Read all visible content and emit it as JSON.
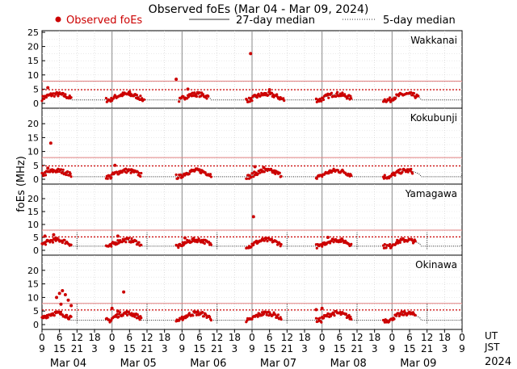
{
  "chart_data": {
    "type": "scatter",
    "title": "Observed foEs (Mar 04 - Mar 09, 2024)",
    "ylabel": "foEs (MHz)",
    "legend": {
      "observed": "Observed foEs",
      "median27": "27-day median",
      "median5": "5-day median",
      "placement": "top"
    },
    "ylim": [
      0,
      25
    ],
    "yticks": [
      0,
      5,
      10,
      15,
      20,
      25
    ],
    "xlim_hours_ut": [
      0,
      144
    ],
    "ut_ticks": [
      "0",
      "6",
      "12",
      "18",
      "0",
      "6",
      "12",
      "18",
      "0",
      "6",
      "12",
      "18",
      "0",
      "6",
      "12",
      "18",
      "0",
      "6",
      "12",
      "18",
      "0",
      "6",
      "12",
      "18",
      "0"
    ],
    "jst_ticks": [
      "9",
      "15",
      "21",
      "3",
      "9",
      "15",
      "21",
      "3",
      "9",
      "15",
      "21",
      "3",
      "9",
      "15",
      "21",
      "3",
      "9",
      "15",
      "21",
      "3",
      "9",
      "15",
      "21",
      "3",
      "9"
    ],
    "ut_label": "UT",
    "jst_label": "JST",
    "days": [
      "Mar 04",
      "Mar 05",
      "Mar 06",
      "Mar 07",
      "Mar 08",
      "Mar 09"
    ],
    "year": "2024",
    "colors": {
      "observed": "#cc0000",
      "median": "#222222",
      "threshold_dotted": "#cc0000",
      "threshold_solid": "#e08080",
      "grid": "#999999"
    },
    "stations": [
      {
        "name": "Wakkanai",
        "threshold_solid": 7.8,
        "threshold_dotted": 4.8,
        "median_base": 1.2,
        "median_amp": 2.0,
        "obs_windows": [
          [
            0,
            10
          ],
          [
            22,
            35
          ],
          [
            47,
            57
          ],
          [
            70,
            83
          ],
          [
            94,
            106
          ],
          [
            117,
            129
          ]
        ],
        "outliers": [
          [
            2,
            5.5
          ],
          [
            46,
            8.5
          ],
          [
            50,
            5
          ],
          [
            71.5,
            17.5
          ],
          [
            78,
            4.8
          ],
          [
            30,
            4
          ]
        ]
      },
      {
        "name": "Kokubunji",
        "threshold_solid": 7.8,
        "threshold_dotted": 4.8,
        "median_base": 0.9,
        "median_amp": 2.2,
        "obs_windows": [
          [
            0,
            10
          ],
          [
            22,
            34
          ],
          [
            46,
            58
          ],
          [
            70,
            82
          ],
          [
            94,
            106
          ],
          [
            117,
            127
          ]
        ],
        "outliers": [
          [
            3,
            13
          ],
          [
            25,
            5
          ],
          [
            73,
            4.5
          ],
          [
            76,
            4.2
          ],
          [
            2,
            4
          ]
        ]
      },
      {
        "name": "Yamagawa",
        "threshold_solid": 7.8,
        "threshold_dotted": 5.2,
        "median_base": 1.6,
        "median_amp": 2.4,
        "obs_windows": [
          [
            0,
            10
          ],
          [
            22,
            34
          ],
          [
            46,
            58
          ],
          [
            70,
            82
          ],
          [
            94,
            106
          ],
          [
            117,
            128
          ]
        ],
        "outliers": [
          [
            1,
            5.5
          ],
          [
            4,
            6
          ],
          [
            72.5,
            13
          ],
          [
            26,
            5.5
          ],
          [
            49,
            4.8
          ],
          [
            98,
            5
          ]
        ]
      },
      {
        "name": "Okinawa",
        "threshold_solid": 7.8,
        "threshold_dotted": 5.4,
        "median_base": 1.6,
        "median_amp": 2.6,
        "obs_windows": [
          [
            0,
            10
          ],
          [
            22,
            34
          ],
          [
            46,
            58
          ],
          [
            70,
            82
          ],
          [
            94,
            106
          ],
          [
            117,
            128
          ]
        ],
        "outliers": [
          [
            5,
            10
          ],
          [
            6,
            11.5
          ],
          [
            7,
            12.5
          ],
          [
            8,
            11
          ],
          [
            9,
            9
          ],
          [
            10,
            7
          ],
          [
            6.5,
            7.5
          ],
          [
            28,
            12
          ],
          [
            24,
            6
          ],
          [
            26,
            5
          ],
          [
            94,
            5.5
          ],
          [
            96,
            6
          ]
        ]
      }
    ]
  }
}
